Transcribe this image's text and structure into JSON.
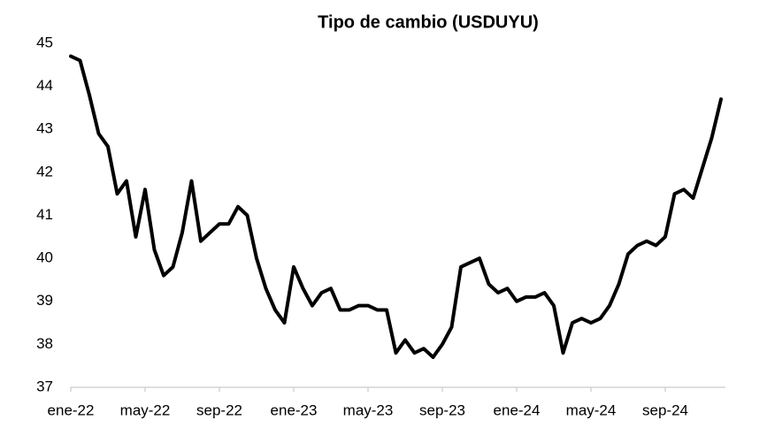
{
  "chart_data": {
    "type": "line",
    "title": "Tipo de cambio (USDUYU)",
    "categories": [
      "ene-22",
      null,
      null,
      null,
      null,
      null,
      null,
      null,
      "may-22",
      null,
      null,
      null,
      null,
      null,
      null,
      null,
      "sep-22",
      null,
      null,
      null,
      null,
      null,
      null,
      null,
      "ene-23",
      null,
      null,
      null,
      null,
      null,
      null,
      null,
      "may-23",
      null,
      null,
      null,
      null,
      null,
      null,
      null,
      "sep-23",
      null,
      null,
      null,
      null,
      null,
      null,
      null,
      "ene-24",
      null,
      null,
      null,
      null,
      null,
      null,
      null,
      "may-24",
      null,
      null,
      null,
      null,
      null,
      null,
      null,
      "sep-24",
      null,
      null,
      null,
      null,
      null,
      null
    ],
    "series": [
      {
        "name": "USDUYU",
        "color": "#000000",
        "values": [
          44.7,
          44.6,
          43.8,
          42.9,
          42.6,
          41.5,
          41.8,
          40.5,
          41.6,
          40.2,
          39.6,
          39.8,
          40.6,
          41.8,
          40.4,
          40.6,
          40.8,
          40.8,
          41.2,
          41.0,
          40.0,
          39.3,
          38.8,
          38.5,
          39.8,
          39.3,
          38.9,
          39.2,
          39.3,
          38.8,
          38.8,
          38.9,
          38.9,
          38.8,
          38.8,
          37.8,
          38.1,
          37.8,
          37.9,
          37.7,
          38.0,
          38.4,
          39.8,
          39.9,
          40.0,
          39.4,
          39.2,
          39.3,
          39.0,
          39.1,
          39.1,
          39.2,
          38.9,
          37.8,
          38.5,
          38.6,
          38.5,
          38.6,
          38.9,
          39.4,
          40.1,
          40.3,
          40.4,
          40.3,
          40.5,
          41.5,
          41.6,
          41.4,
          42.1,
          42.8,
          43.7
        ]
      }
    ],
    "ylim": [
      37,
      45
    ],
    "yticks": [
      37,
      38,
      39,
      40,
      41,
      42,
      43,
      44,
      45
    ],
    "grid": false
  }
}
